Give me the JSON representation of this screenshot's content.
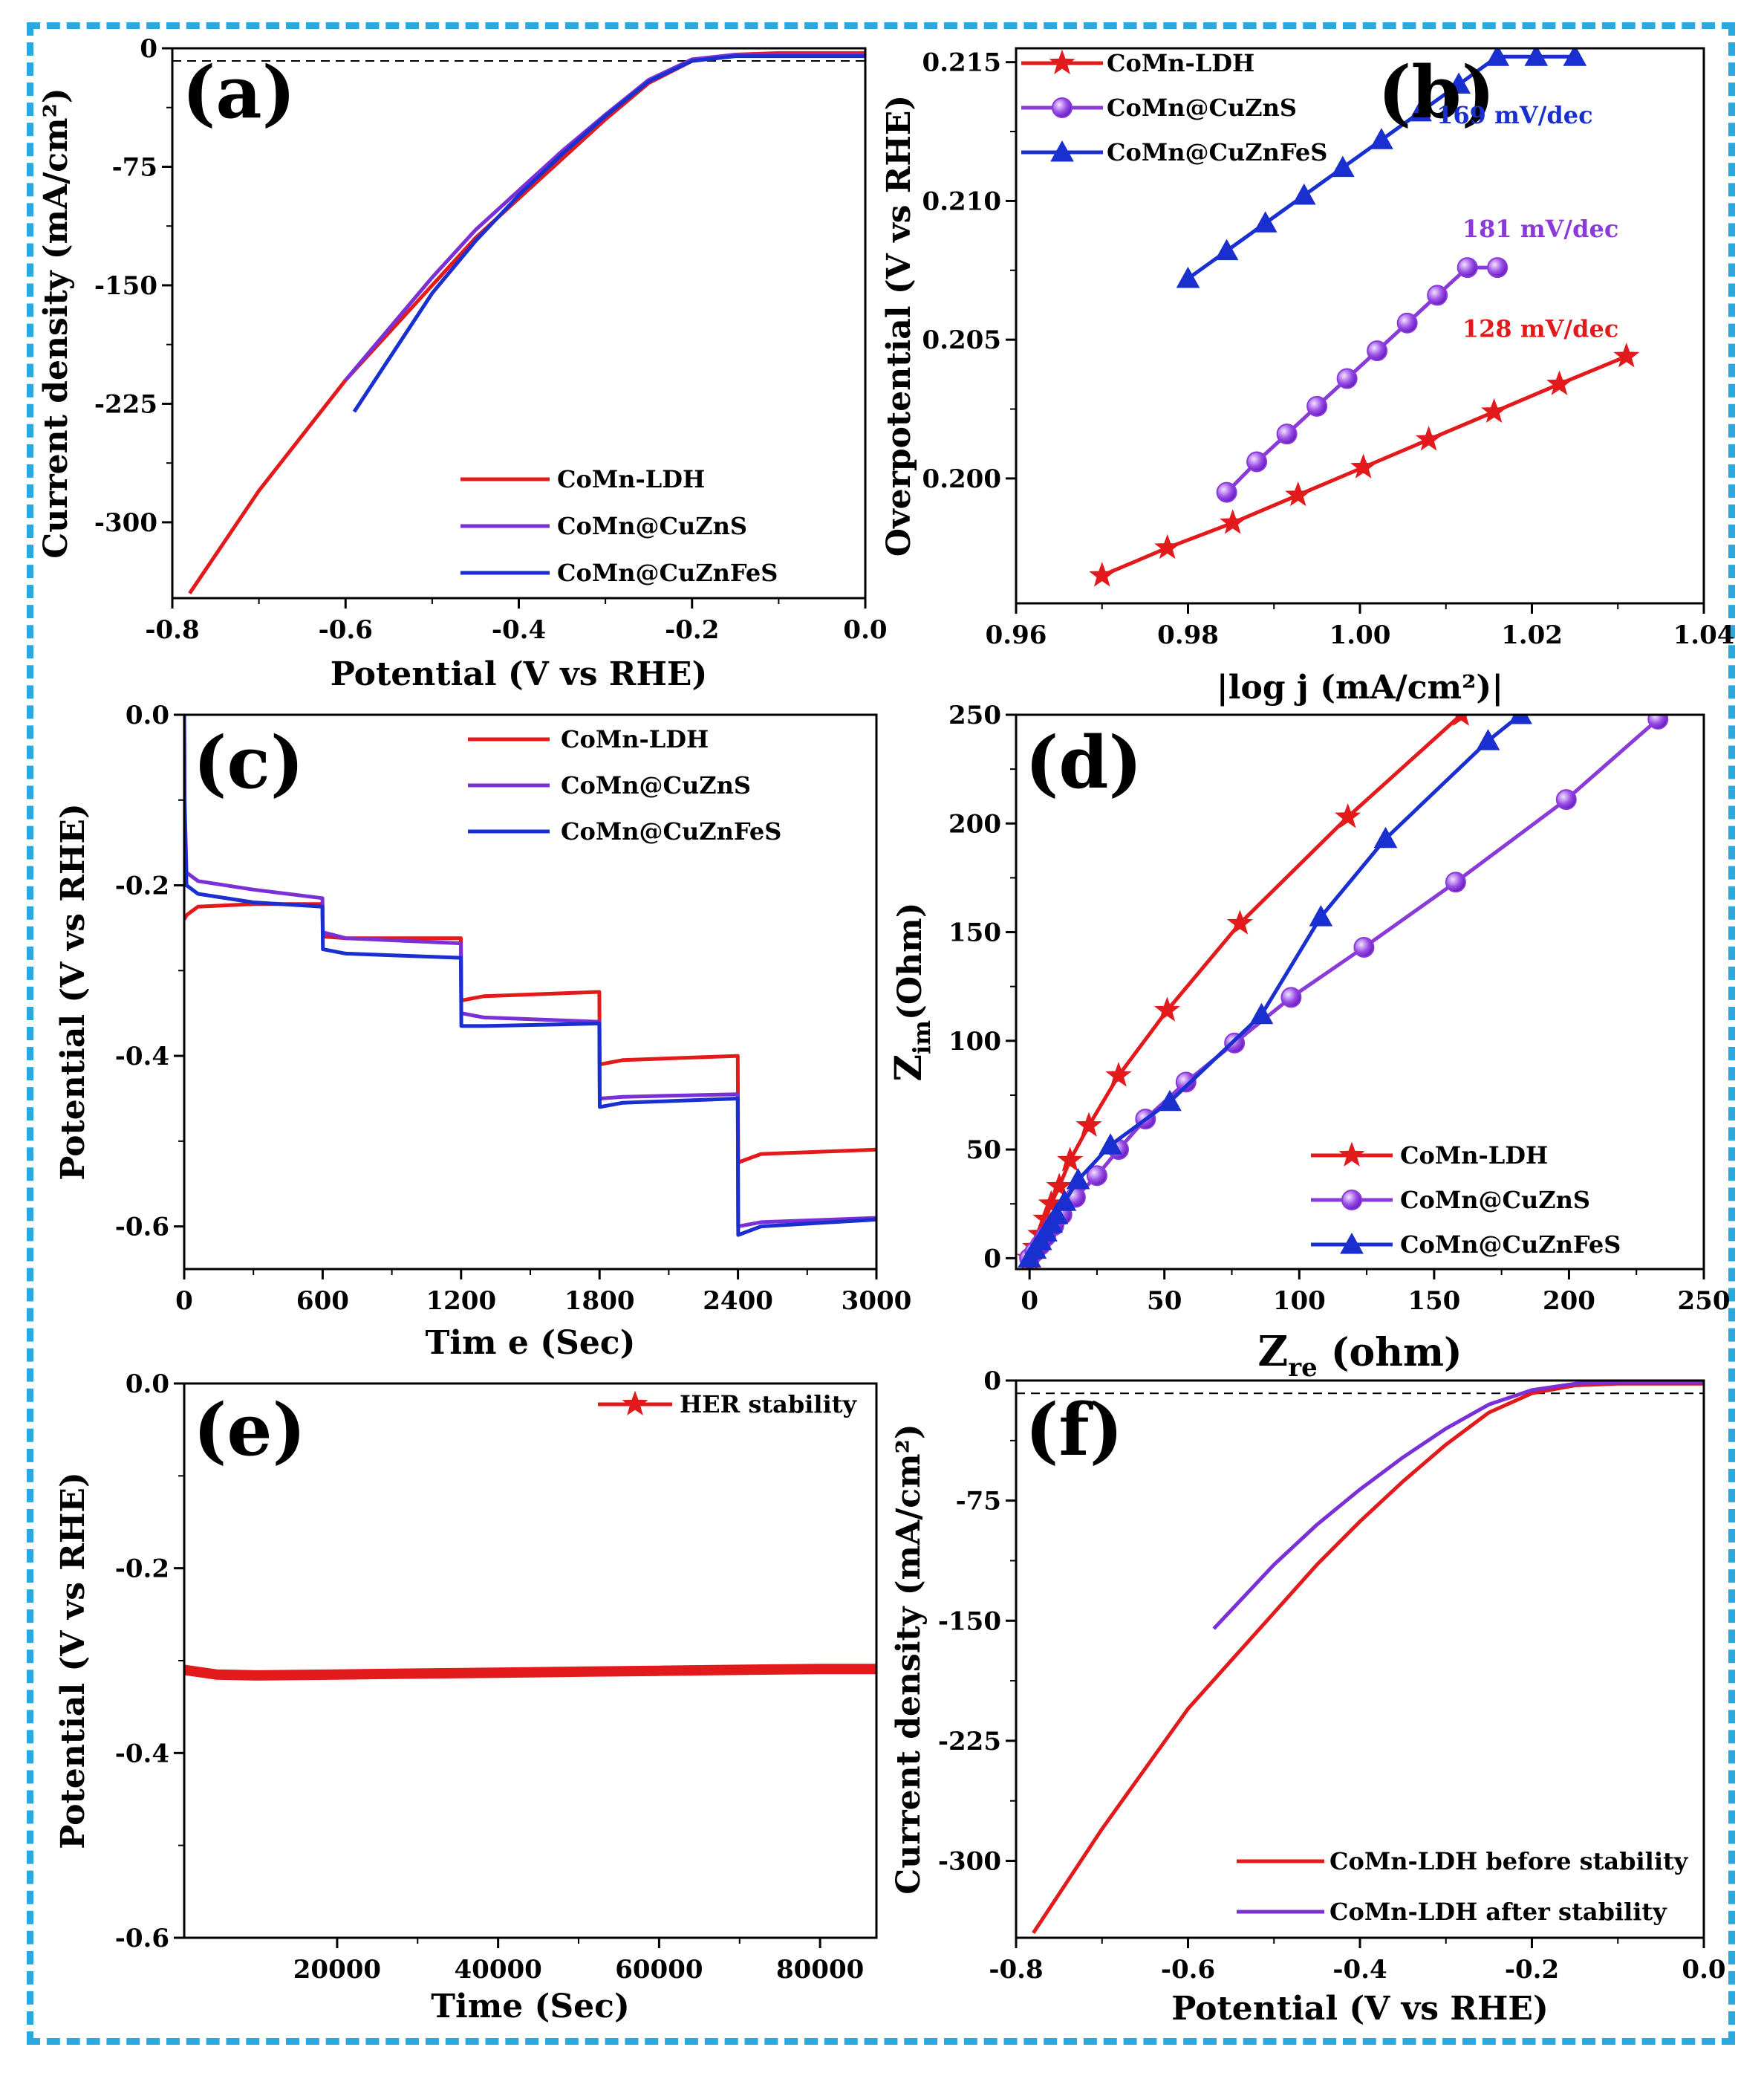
{
  "figure": {
    "border_color": "#29a9e0"
  },
  "chart_data": [
    {
      "id": "a",
      "type": "line",
      "panel_label": "(a)",
      "xlabel": "Potential (V vs RHE)",
      "ylabel": "Current density (mA/cm²)",
      "xlim": [
        -0.8,
        0.0
      ],
      "ylim": [
        -348,
        0
      ],
      "xticks": [
        -0.8,
        -0.6,
        -0.4,
        -0.2,
        0.0
      ],
      "xtick_labels": [
        "-0.8",
        "-0.6",
        "-0.4",
        "-0.2",
        "0.0"
      ],
      "yticks": [
        0,
        -75,
        -150,
        -225,
        -300
      ],
      "ytick_labels": [
        "0",
        "-75",
        "-150",
        "-225",
        "-300"
      ],
      "reference_line_y": -8,
      "legend_position": "bottom-right",
      "series": [
        {
          "name": "CoMn-LDH",
          "color": "#e31a1c",
          "marker": "none",
          "x": [
            -0.78,
            -0.7,
            -0.6,
            -0.5,
            -0.45,
            -0.4,
            -0.35,
            -0.3,
            -0.25,
            -0.2,
            -0.15,
            -0.1,
            -0.05,
            0.0
          ],
          "y": [
            -345,
            -280,
            -210,
            -150,
            -120,
            -95,
            -70,
            -45,
            -22,
            -8,
            -4,
            -3,
            -3,
            -3
          ]
        },
        {
          "name": "CoMn@CuZnS",
          "color": "#7b2fd6",
          "marker": "none",
          "x": [
            -0.6,
            -0.5,
            -0.45,
            -0.4,
            -0.35,
            -0.3,
            -0.25,
            -0.2,
            -0.15,
            -0.1,
            -0.05,
            0.0
          ],
          "y": [
            -210,
            -145,
            -115,
            -90,
            -65,
            -42,
            -20,
            -7,
            -4,
            -4,
            -4,
            -4
          ]
        },
        {
          "name": "CoMn@CuZnFeS",
          "color": "#1a2fcf",
          "marker": "none",
          "x": [
            -0.59,
            -0.5,
            -0.45,
            -0.4,
            -0.35,
            -0.3,
            -0.25,
            -0.2,
            -0.15,
            -0.1,
            -0.05,
            0.0
          ],
          "y": [
            -230,
            -155,
            -122,
            -93,
            -67,
            -43,
            -21,
            -8,
            -5,
            -5,
            -5,
            -5
          ]
        }
      ]
    },
    {
      "id": "b",
      "type": "line",
      "panel_label": "(b)",
      "xlabel": "|log j (mA/cm²)|",
      "ylabel": "Overpotential (V vs RHE)",
      "xlim": [
        0.96,
        1.04
      ],
      "ylim": [
        0.1955,
        0.2155
      ],
      "xticks": [
        0.96,
        0.98,
        1.0,
        1.02,
        1.04
      ],
      "xtick_labels": [
        "0.96",
        "0.98",
        "1.00",
        "1.02",
        "1.04"
      ],
      "yticks": [
        0.2,
        0.205,
        0.21,
        0.215
      ],
      "ytick_labels": [
        "0.200",
        "0.205",
        "0.210",
        "0.215"
      ],
      "legend_position": "top-left",
      "annotations": [
        {
          "text": "169 mV/dec",
          "x": 1.018,
          "y": 0.2128,
          "color": "#1a2fcf"
        },
        {
          "text": "181 mV/dec",
          "x": 1.021,
          "y": 0.2087,
          "color": "#8a3ad9"
        },
        {
          "text": "128 mV/dec",
          "x": 1.021,
          "y": 0.2051,
          "color": "#e31a1c"
        }
      ],
      "series": [
        {
          "name": "CoMn-LDH",
          "color": "#e31a1c",
          "marker": "star",
          "x": [
            0.97,
            0.9776,
            0.9852,
            0.9928,
            1.0004,
            1.008,
            1.0156,
            1.0232,
            1.031
          ],
          "y": [
            0.1965,
            0.1975,
            0.1984,
            0.1994,
            0.2004,
            0.2014,
            0.2024,
            0.2034,
            0.2044
          ]
        },
        {
          "name": "CoMn@CuZnS",
          "color": "#8a3ad9",
          "marker": "circle",
          "x": [
            0.9845,
            0.988,
            0.9915,
            0.995,
            0.9985,
            1.002,
            1.0055,
            1.009,
            1.0125,
            1.016
          ],
          "y": [
            0.1995,
            0.2006,
            0.2016,
            0.2026,
            0.2036,
            0.2046,
            0.2056,
            0.2066,
            0.2076,
            0.2076
          ]
        },
        {
          "name": "CoMn@CuZnFeS",
          "color": "#1a2fcf",
          "marker": "triangle",
          "x": [
            0.98,
            0.9845,
            0.989,
            0.9935,
            0.998,
            1.0025,
            1.007,
            1.0115,
            1.016,
            1.0205,
            1.025
          ],
          "y": [
            0.2072,
            0.2082,
            0.2092,
            0.2102,
            0.2112,
            0.2122,
            0.2132,
            0.2142,
            0.2152,
            0.2152,
            0.2152
          ]
        }
      ]
    },
    {
      "id": "c",
      "type": "line",
      "panel_label": "(c)",
      "xlabel": "Tim e (Sec)",
      "ylabel": "Potential (V vs RHE)",
      "xlim": [
        0,
        3000
      ],
      "ylim": [
        -0.65,
        0.0
      ],
      "xticks": [
        0,
        600,
        1200,
        1800,
        2400,
        3000
      ],
      "xtick_labels": [
        "0",
        "600",
        "1200",
        "1800",
        "2400",
        "3000"
      ],
      "yticks": [
        0.0,
        -0.2,
        -0.4,
        -0.6
      ],
      "ytick_labels": [
        "0.0",
        "-0.2",
        "-0.4",
        "-0.6"
      ],
      "legend_position": "top-right",
      "series": [
        {
          "name": "CoMn-LDH",
          "color": "#e31a1c",
          "marker": "none",
          "x": [
            0,
            10,
            60,
            300,
            599,
            601,
            700,
            1199,
            1201,
            1300,
            1799,
            1801,
            1900,
            2399,
            2401,
            2500,
            3000
          ],
          "y": [
            -0.24,
            -0.235,
            -0.225,
            -0.222,
            -0.222,
            -0.26,
            -0.262,
            -0.262,
            -0.335,
            -0.33,
            -0.325,
            -0.41,
            -0.405,
            -0.4,
            -0.525,
            -0.515,
            -0.51
          ]
        },
        {
          "name": "CoMn@CuZnS",
          "color": "#7b2fd6",
          "marker": "none",
          "x": [
            0,
            2,
            10,
            60,
            300,
            599,
            601,
            700,
            1199,
            1201,
            1300,
            1799,
            1801,
            1900,
            2399,
            2401,
            2500,
            3000
          ],
          "y": [
            0.0,
            -0.1,
            -0.185,
            -0.195,
            -0.205,
            -0.215,
            -0.255,
            -0.262,
            -0.268,
            -0.35,
            -0.355,
            -0.36,
            -0.45,
            -0.448,
            -0.445,
            -0.6,
            -0.595,
            -0.59
          ]
        },
        {
          "name": "CoMn@CuZnFeS",
          "color": "#1a2fcf",
          "marker": "none",
          "x": [
            0,
            2,
            10,
            60,
            300,
            599,
            601,
            700,
            1199,
            1201,
            1300,
            1799,
            1801,
            1900,
            2399,
            2401,
            2500,
            3000
          ],
          "y": [
            0.0,
            -0.12,
            -0.2,
            -0.21,
            -0.22,
            -0.225,
            -0.275,
            -0.28,
            -0.285,
            -0.365,
            -0.365,
            -0.362,
            -0.46,
            -0.455,
            -0.45,
            -0.61,
            -0.6,
            -0.592
          ]
        }
      ]
    },
    {
      "id": "d",
      "type": "line",
      "panel_label": "(d)",
      "xlabel": "Z (ohm)",
      "xlabel_main": "Z",
      "xlabel_sub": "re",
      "xlabel_rest": "(ohm)",
      "ylabel_main": "Z",
      "ylabel_sub": "im",
      "ylabel_rest": "(Ohm)",
      "xlim": [
        -5,
        250
      ],
      "ylim": [
        -5,
        250
      ],
      "xticks": [
        0,
        50,
        100,
        150,
        200,
        250
      ],
      "xtick_labels": [
        "0",
        "50",
        "100",
        "150",
        "200",
        "250"
      ],
      "yticks": [
        0,
        50,
        100,
        150,
        200,
        250
      ],
      "ytick_labels": [
        "0",
        "50",
        "100",
        "150",
        "200",
        "250"
      ],
      "legend_position": "bottom-right",
      "series": [
        {
          "name": "CoMn-LDH",
          "color": "#e31a1c",
          "marker": "star",
          "x": [
            0,
            2,
            4,
            6,
            8,
            11,
            15,
            22,
            33,
            51,
            78,
            118,
            160
          ],
          "y": [
            0,
            5,
            11,
            18,
            25,
            33,
            45,
            61,
            84,
            114,
            154,
            203,
            250
          ]
        },
        {
          "name": "CoMn@CuZnS",
          "color": "#8a3ad9",
          "marker": "circle",
          "x": [
            0,
            2,
            4,
            6,
            9,
            12,
            17,
            25,
            33,
            43,
            58,
            76,
            97,
            124,
            158,
            199,
            233
          ],
          "y": [
            0,
            3,
            6,
            10,
            15,
            20,
            28,
            38,
            50,
            64,
            81,
            99,
            120,
            143,
            173,
            211,
            248
          ]
        },
        {
          "name": "CoMn@CuZnFeS",
          "color": "#1a2fcf",
          "marker": "triangle",
          "x": [
            0,
            2,
            4,
            6,
            8,
            10,
            13,
            18,
            30,
            52,
            86,
            108,
            132,
            170,
            182
          ],
          "y": [
            0,
            4,
            8,
            12,
            16,
            20,
            26,
            36,
            52,
            72,
            112,
            157,
            193,
            238,
            250
          ]
        }
      ]
    },
    {
      "id": "e",
      "type": "line",
      "panel_label": "(e)",
      "xlabel": "Time (Sec)",
      "ylabel": "Potential (V vs RHE)",
      "xlim": [
        1000,
        87000
      ],
      "ylim": [
        -0.6,
        0.0
      ],
      "xticks": [
        20000,
        40000,
        60000,
        80000
      ],
      "xtick_labels": [
        "20000",
        "40000",
        "60000",
        "80000"
      ],
      "yticks": [
        0.0,
        -0.2,
        -0.4,
        -0.6
      ],
      "ytick_labels": [
        "0.0",
        "-0.2",
        "-0.4",
        "-0.6"
      ],
      "legend_position": "top-right",
      "series": [
        {
          "name": "HER stability",
          "color": "#e31a1c",
          "marker": "star",
          "x": [
            1000,
            5000,
            10000,
            20000,
            30000,
            40000,
            50000,
            60000,
            70000,
            80000,
            87000
          ],
          "y": [
            -0.31,
            -0.315,
            -0.316,
            -0.315,
            -0.314,
            -0.313,
            -0.312,
            -0.311,
            -0.31,
            -0.309,
            -0.309
          ]
        }
      ]
    },
    {
      "id": "f",
      "type": "line",
      "panel_label": "(f)",
      "xlabel": "Potential (V vs RHE)",
      "ylabel": "Current density (mA/cm²)",
      "xlim": [
        -0.8,
        0.0
      ],
      "ylim": [
        -348,
        0
      ],
      "xticks": [
        -0.8,
        -0.6,
        -0.4,
        -0.2,
        0.0
      ],
      "xtick_labels": [
        "-0.8",
        "-0.6",
        "-0.4",
        "-0.2",
        "0.0"
      ],
      "yticks": [
        0,
        -75,
        -150,
        -225,
        -300
      ],
      "ytick_labels": [
        "0",
        "-75",
        "-150",
        "-225",
        "-300"
      ],
      "reference_line_y": -8,
      "legend_position": "bottom-right",
      "series": [
        {
          "name": "CoMn-LDH before stability",
          "color": "#e31a1c",
          "marker": "none",
          "x": [
            -0.78,
            -0.7,
            -0.6,
            -0.5,
            -0.45,
            -0.4,
            -0.35,
            -0.3,
            -0.25,
            -0.2,
            -0.15,
            -0.1,
            -0.05,
            0.0
          ],
          "y": [
            -345,
            -280,
            -205,
            -145,
            -115,
            -88,
            -63,
            -40,
            -20,
            -8,
            -3,
            -2,
            -2,
            -2
          ]
        },
        {
          "name": "CoMn-LDH after stability",
          "color": "#7b2fd6",
          "marker": "none",
          "x": [
            -0.57,
            -0.5,
            -0.45,
            -0.4,
            -0.35,
            -0.3,
            -0.25,
            -0.2,
            -0.15,
            -0.1,
            -0.05,
            0.0
          ],
          "y": [
            -155,
            -115,
            -90,
            -68,
            -48,
            -30,
            -15,
            -6,
            -2,
            -1,
            -1,
            -1
          ]
        }
      ]
    }
  ]
}
